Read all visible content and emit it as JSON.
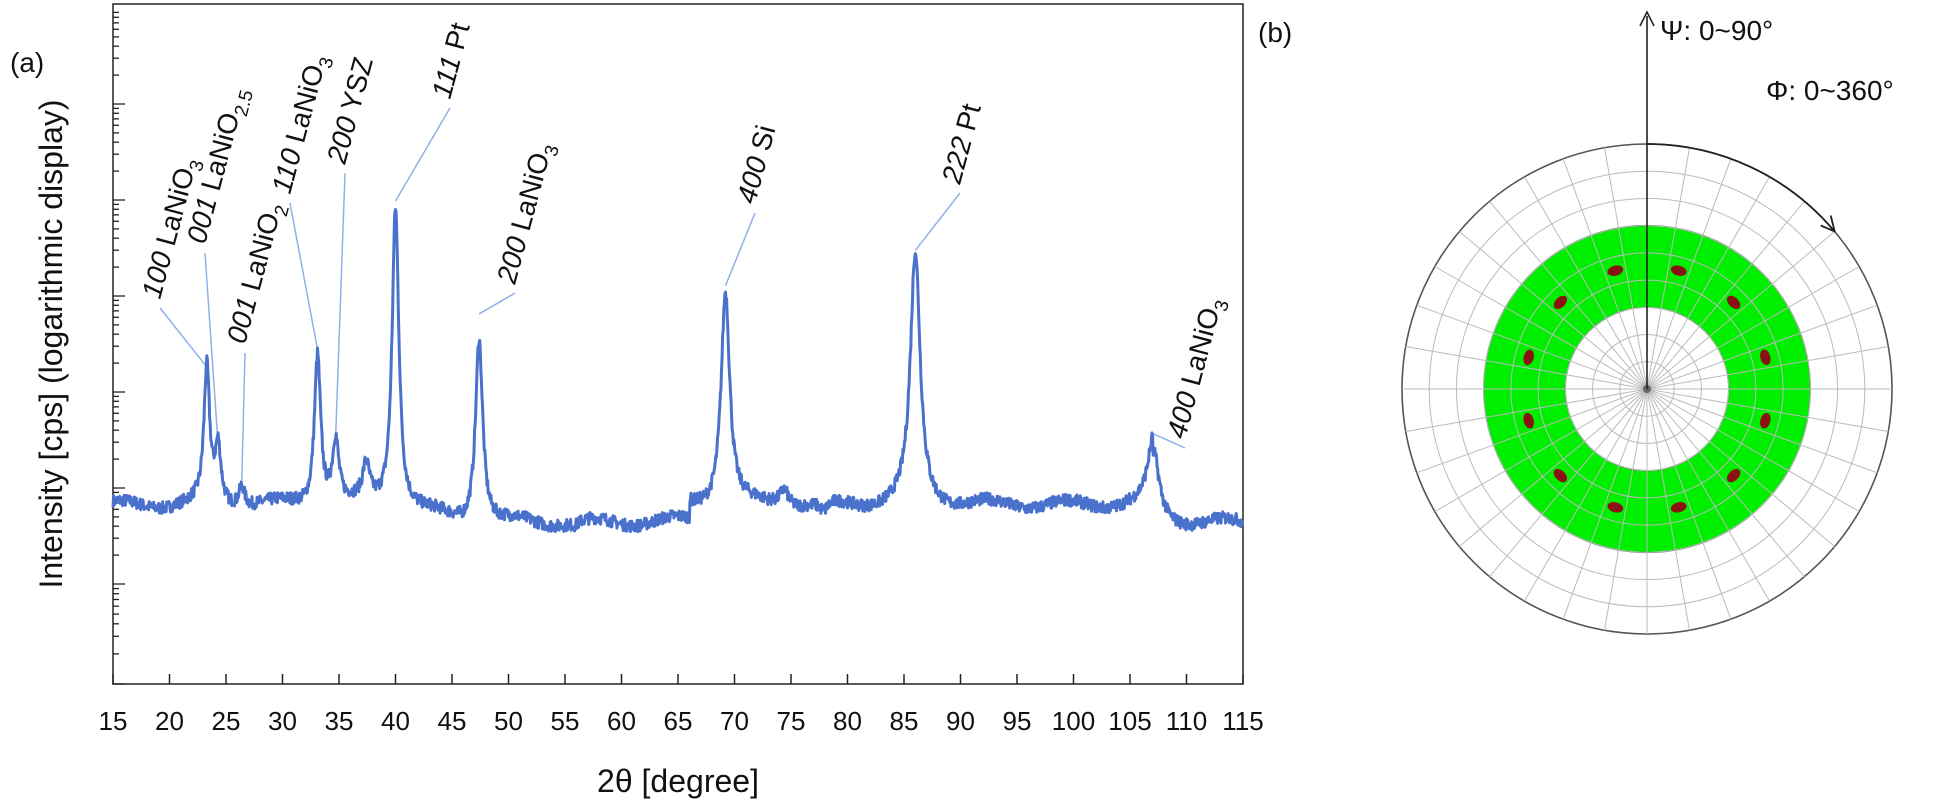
{
  "figure": {
    "panel_a_label": "(a)",
    "panel_b_label": "(b)"
  },
  "chart_data": [
    {
      "type": "line",
      "xlabel": "2θ [degree]",
      "ylabel": "Intensity [cps] (logarithmic display)",
      "xlim": [
        15,
        115
      ],
      "y_scale": "log",
      "y_tick_labels_shown": false,
      "x_ticks": [
        15,
        20,
        25,
        30,
        35,
        40,
        45,
        50,
        55,
        60,
        65,
        70,
        75,
        80,
        85,
        90,
        95,
        100,
        105,
        110,
        115
      ],
      "grid": false,
      "color": "#4a72cc",
      "baseline_level": 0.15,
      "peaks": [
        {
          "two_theta": 23.3,
          "relative_height": 0.53
        },
        {
          "two_theta": 24.3,
          "relative_height": 0.31
        },
        {
          "two_theta": 26.4,
          "relative_height": 0.21
        },
        {
          "two_theta": 33.1,
          "relative_height": 0.58
        },
        {
          "two_theta": 34.7,
          "relative_height": 0.33
        },
        {
          "two_theta": 37.4,
          "relative_height": 0.25
        },
        {
          "two_theta": 40.0,
          "relative_height": 1.0
        },
        {
          "two_theta": 47.4,
          "relative_height": 0.68
        },
        {
          "two_theta": 55.9,
          "relative_height": 0.14
        },
        {
          "two_theta": 69.2,
          "relative_height": 0.76
        },
        {
          "two_theta": 74.4,
          "relative_height": 0.2
        },
        {
          "two_theta": 77.9,
          "relative_height": 0.12
        },
        {
          "two_theta": 86.0,
          "relative_height": 0.86
        },
        {
          "two_theta": 107.1,
          "relative_height": 0.34
        }
      ],
      "annotations": [
        {
          "hkl": "100",
          "text": " LaNiO",
          "sub": "3",
          "at_two_theta": 23.3
        },
        {
          "hkl": "001",
          "text": " LaNiO",
          "sub": "2.5",
          "at_two_theta": 24.3
        },
        {
          "hkl": "001",
          "text": " LaNiO",
          "sub": "2",
          "at_two_theta": 26.4
        },
        {
          "hkl": "110",
          "text": " LaNiO",
          "sub": "3",
          "at_two_theta": 33.1
        },
        {
          "hkl": "200",
          "text": " YSZ",
          "sub": "",
          "at_two_theta": 34.7
        },
        {
          "hkl": "111",
          "text": " Pt",
          "sub": "",
          "at_two_theta": 40.0
        },
        {
          "hkl": "200",
          "text": " LaNiO",
          "sub": "3",
          "at_two_theta": 47.4
        },
        {
          "hkl": "400",
          "text": " Si",
          "sub": "",
          "at_two_theta": 69.2
        },
        {
          "hkl": "222",
          "text": " Pt",
          "sub": "",
          "at_two_theta": 86.0
        },
        {
          "hkl": "400",
          "text": " LaNiO",
          "sub": "3",
          "at_two_theta": 107.1
        }
      ]
    },
    {
      "type": "polar_pole_figure",
      "psi_label": "Ψ: 0~90°",
      "phi_label": "Φ: 0~360°",
      "psi_range_deg": [
        0,
        90
      ],
      "phi_range_deg": [
        0,
        360
      ],
      "radial_gridlines": 9,
      "angular_divisions": 36,
      "highlighted_band_psi_deg": [
        30,
        60
      ],
      "band_color": "#00ee00",
      "spot_color": "#8b1212",
      "spot_count": 12,
      "spot_psi_deg": 45
    }
  ]
}
